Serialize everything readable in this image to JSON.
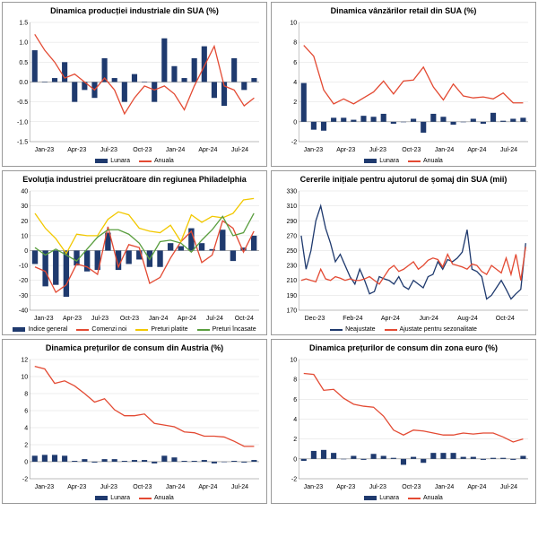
{
  "colors": {
    "bar": "#1f3a6e",
    "red": "#e34a33",
    "yellow": "#f2c800",
    "green": "#5a9e3f",
    "blue_line": "#1f3a6e",
    "grid": "#dddddd",
    "axis": "#888888"
  },
  "xlabels_month": [
    "Jan-23",
    "Apr-23",
    "Jul-23",
    "Oct-23",
    "Jan-24",
    "Apr-24",
    "Jul-24"
  ],
  "panels": [
    {
      "title": "Dinamica producției industriale din SUA (%)",
      "ylim": [
        -1.5,
        1.5
      ],
      "yticks": [
        -1.5,
        -1.0,
        -0.5,
        0.0,
        0.5,
        1.0,
        1.5
      ],
      "bars": [
        0.8,
        0.0,
        0.1,
        0.5,
        -0.5,
        -0.2,
        -0.4,
        0.6,
        0.1,
        -0.5,
        0.2,
        0.0,
        -0.5,
        1.1,
        0.4,
        0.1,
        0.6,
        0.9,
        -0.4,
        -0.6,
        0.6,
        -0.2,
        0.1
      ],
      "lines": [
        {
          "key": "red",
          "vals": [
            1.2,
            0.8,
            0.5,
            0.1,
            0.2,
            0.0,
            -0.2,
            0.1,
            -0.2,
            -0.8,
            -0.4,
            -0.1,
            -0.2,
            -0.1,
            -0.3,
            -0.7,
            -0.1,
            0.4,
            0.9,
            -0.1,
            -0.2,
            -0.6,
            -0.4
          ]
        }
      ],
      "legend": [
        {
          "t": "bar",
          "c": "bar",
          "l": "Lunara"
        },
        {
          "t": "line",
          "c": "red",
          "l": "Anuala"
        }
      ]
    },
    {
      "title": "Dinamica vânzărilor retail din SUA (%)",
      "ylim": [
        -2,
        10
      ],
      "yticks": [
        -2,
        0,
        2,
        4,
        6,
        8,
        10
      ],
      "bars": [
        3.9,
        -0.8,
        -0.9,
        0.4,
        0.4,
        0.2,
        0.6,
        0.5,
        0.8,
        -0.2,
        0.0,
        0.3,
        -1.1,
        0.8,
        0.5,
        -0.3,
        0.0,
        0.3,
        -0.2,
        0.9,
        0.1,
        0.3,
        0.4
      ],
      "lines": [
        {
          "key": "red",
          "vals": [
            7.7,
            6.6,
            3.2,
            1.8,
            2.3,
            1.8,
            2.4,
            3.0,
            4.1,
            2.8,
            4.1,
            4.2,
            5.5,
            3.5,
            2.2,
            3.8,
            2.6,
            2.4,
            2.5,
            2.3,
            2.9,
            1.9,
            1.9
          ]
        }
      ],
      "legend": [
        {
          "t": "bar",
          "c": "bar",
          "l": "Lunara"
        },
        {
          "t": "line",
          "c": "red",
          "l": "Anuala"
        }
      ]
    },
    {
      "title": "Evoluția industriei prelucrătoare din regiunea Philadelphia",
      "ylim": [
        -40,
        40
      ],
      "yticks": [
        -40,
        -30,
        -20,
        -10,
        0,
        10,
        20,
        30,
        40
      ],
      "xlabels": [
        "Jan-23",
        "Apr-23",
        "Jul-23",
        "Oct-23",
        "Jan-24",
        "Apr-24",
        "Jul-24",
        "Oct-24"
      ],
      "bars": [
        -9,
        -24,
        -23,
        -31,
        -10,
        -14,
        -13,
        12,
        -13,
        -9,
        -6,
        -11,
        -11,
        5,
        3,
        15,
        5,
        1,
        14,
        -7,
        2,
        10
      ],
      "lines": [
        {
          "key": "red",
          "vals": [
            -11,
            -14,
            -28,
            -23,
            -9,
            -11,
            -16,
            16,
            -11,
            4,
            2,
            -22,
            -18,
            -5,
            6,
            13,
            -8,
            -3,
            20,
            15,
            -1,
            13
          ]
        },
        {
          "key": "yellow",
          "vals": [
            25,
            15,
            8,
            -2,
            11,
            10,
            10,
            21,
            26,
            24,
            15,
            13,
            12,
            17,
            6,
            24,
            19,
            23,
            22,
            25,
            34,
            35
          ]
        },
        {
          "key": "green",
          "vals": [
            2,
            -3,
            1,
            -3,
            -7,
            1,
            9,
            14,
            14,
            11,
            5,
            -6,
            6,
            7,
            5,
            -1,
            7,
            14,
            23,
            10,
            12,
            25
          ]
        }
      ],
      "legend": [
        {
          "t": "bar",
          "c": "bar",
          "l": "Indice general"
        },
        {
          "t": "line",
          "c": "red",
          "l": "Comenzi noi"
        },
        {
          "t": "line",
          "c": "yellow",
          "l": "Preturi platite"
        },
        {
          "t": "line",
          "c": "green",
          "l": "Preturi încasate"
        }
      ]
    },
    {
      "title": "Cererile inițiale pentru ajutorul de șomaj din SUA (mii)",
      "ylim": [
        170,
        330
      ],
      "yticks": [
        170,
        190,
        210,
        230,
        250,
        270,
        290,
        310,
        330
      ],
      "xlabels": [
        "Dec-23",
        "Feb-24",
        "Apr-24",
        "Jun-24",
        "Aug-24",
        "Oct-24"
      ],
      "xcount": 47,
      "lines": [
        {
          "key": "blue_line",
          "vals": [
            270,
            225,
            250,
            290,
            310,
            280,
            260,
            235,
            245,
            230,
            215,
            205,
            225,
            210,
            192,
            195,
            215,
            212,
            210,
            205,
            215,
            202,
            198,
            210,
            205,
            200,
            215,
            218,
            235,
            225,
            238,
            235,
            240,
            248,
            278,
            225,
            222,
            215,
            185,
            190,
            200,
            210,
            198,
            185,
            192,
            198,
            260
          ]
        },
        {
          "key": "red",
          "vals": [
            210,
            212,
            210,
            208,
            225,
            212,
            210,
            215,
            213,
            210,
            212,
            210,
            210,
            212,
            215,
            210,
            205,
            215,
            225,
            230,
            222,
            225,
            230,
            235,
            225,
            230,
            237,
            240,
            238,
            228,
            245,
            232,
            230,
            228,
            225,
            232,
            230,
            222,
            218,
            230,
            225,
            220,
            240,
            218,
            245,
            210,
            255
          ]
        }
      ],
      "legend": [
        {
          "t": "line",
          "c": "blue_line",
          "l": "Neajustate"
        },
        {
          "t": "line",
          "c": "red",
          "l": "Ajustate pentru sezonalitate"
        }
      ]
    },
    {
      "title": "Dinamica prețurilor de consum din Austria (%)",
      "ylim": [
        -2,
        12
      ],
      "yticks": [
        -2.0,
        0.0,
        2.0,
        4.0,
        6.0,
        8.0,
        10.0,
        12.0
      ],
      "bars": [
        0.7,
        0.8,
        0.8,
        0.7,
        0.1,
        0.3,
        -0.1,
        0.3,
        0.3,
        0.1,
        0.2,
        0.2,
        -0.2,
        0.7,
        0.5,
        0.1,
        0.1,
        0.2,
        -0.2,
        0.0,
        0.1,
        -0.1,
        0.2
      ],
      "lines": [
        {
          "key": "red",
          "vals": [
            11.2,
            10.9,
            9.2,
            9.5,
            8.9,
            8.0,
            7.0,
            7.4,
            6.1,
            5.4,
            5.4,
            5.6,
            4.5,
            4.3,
            4.1,
            3.5,
            3.4,
            3.0,
            3.0,
            2.9,
            2.4,
            1.8,
            1.8
          ]
        }
      ],
      "legend": [
        {
          "t": "bar",
          "c": "bar",
          "l": "Lunara"
        },
        {
          "t": "line",
          "c": "red",
          "l": "Anuala"
        }
      ]
    },
    {
      "title": "Dinamica prețurilor de consum din zona euro (%)",
      "ylim": [
        -2,
        10
      ],
      "yticks": [
        -2.0,
        0.0,
        2.0,
        4.0,
        6.0,
        8.0,
        10.0
      ],
      "bars": [
        -0.2,
        0.8,
        0.9,
        0.6,
        0.0,
        0.3,
        -0.1,
        0.5,
        0.3,
        0.1,
        -0.6,
        0.2,
        -0.4,
        0.6,
        0.6,
        0.6,
        0.2,
        0.2,
        -0.1,
        0.1,
        0.1,
        -0.1,
        0.3
      ],
      "lines": [
        {
          "key": "red",
          "vals": [
            8.6,
            8.5,
            6.9,
            7.0,
            6.1,
            5.5,
            5.3,
            5.2,
            4.3,
            2.9,
            2.4,
            2.9,
            2.8,
            2.6,
            2.4,
            2.4,
            2.6,
            2.5,
            2.6,
            2.6,
            2.2,
            1.7,
            2.0
          ]
        }
      ],
      "legend": [
        {
          "t": "bar",
          "c": "bar",
          "l": "Lunara"
        },
        {
          "t": "line",
          "c": "red",
          "l": "Anuala"
        }
      ]
    }
  ]
}
